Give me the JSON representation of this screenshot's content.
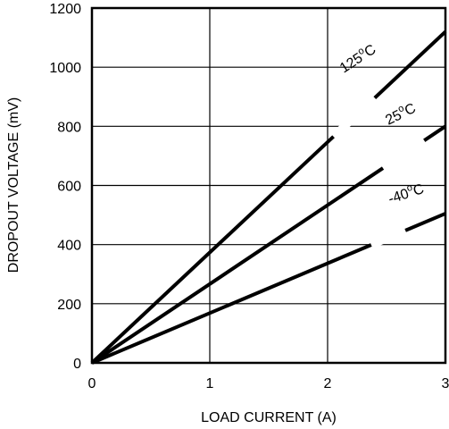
{
  "chart_data": {
    "type": "line",
    "xlabel": "LOAD CURRENT (A)",
    "ylabel": "DROPOUT VOLTAGE (mV)",
    "xlim": [
      0,
      3
    ],
    "ylim": [
      0,
      1200
    ],
    "xticks": [
      0,
      1,
      2,
      3
    ],
    "yticks": [
      0,
      200,
      400,
      600,
      800,
      1000,
      1200
    ],
    "xtick_labels": [
      "0",
      "1",
      "2",
      "3"
    ],
    "ytick_labels": [
      "0",
      "200",
      "400",
      "600",
      "800",
      "1000",
      "1200"
    ],
    "grid": true,
    "legend": "none",
    "series": [
      {
        "name": "125oC",
        "label_main": "125",
        "label_sup": "o",
        "label_unit": "C",
        "x": [
          0,
          3
        ],
        "y": [
          0,
          1120
        ]
      },
      {
        "name": "25oC",
        "label_main": "25",
        "label_sup": "o",
        "label_unit": "C",
        "x": [
          0,
          3
        ],
        "y": [
          0,
          800
        ]
      },
      {
        "name": "-40oC",
        "label_main": "-40",
        "label_sup": "o",
        "label_unit": "C",
        "x": [
          0,
          3
        ],
        "y": [
          0,
          505
        ]
      }
    ]
  }
}
